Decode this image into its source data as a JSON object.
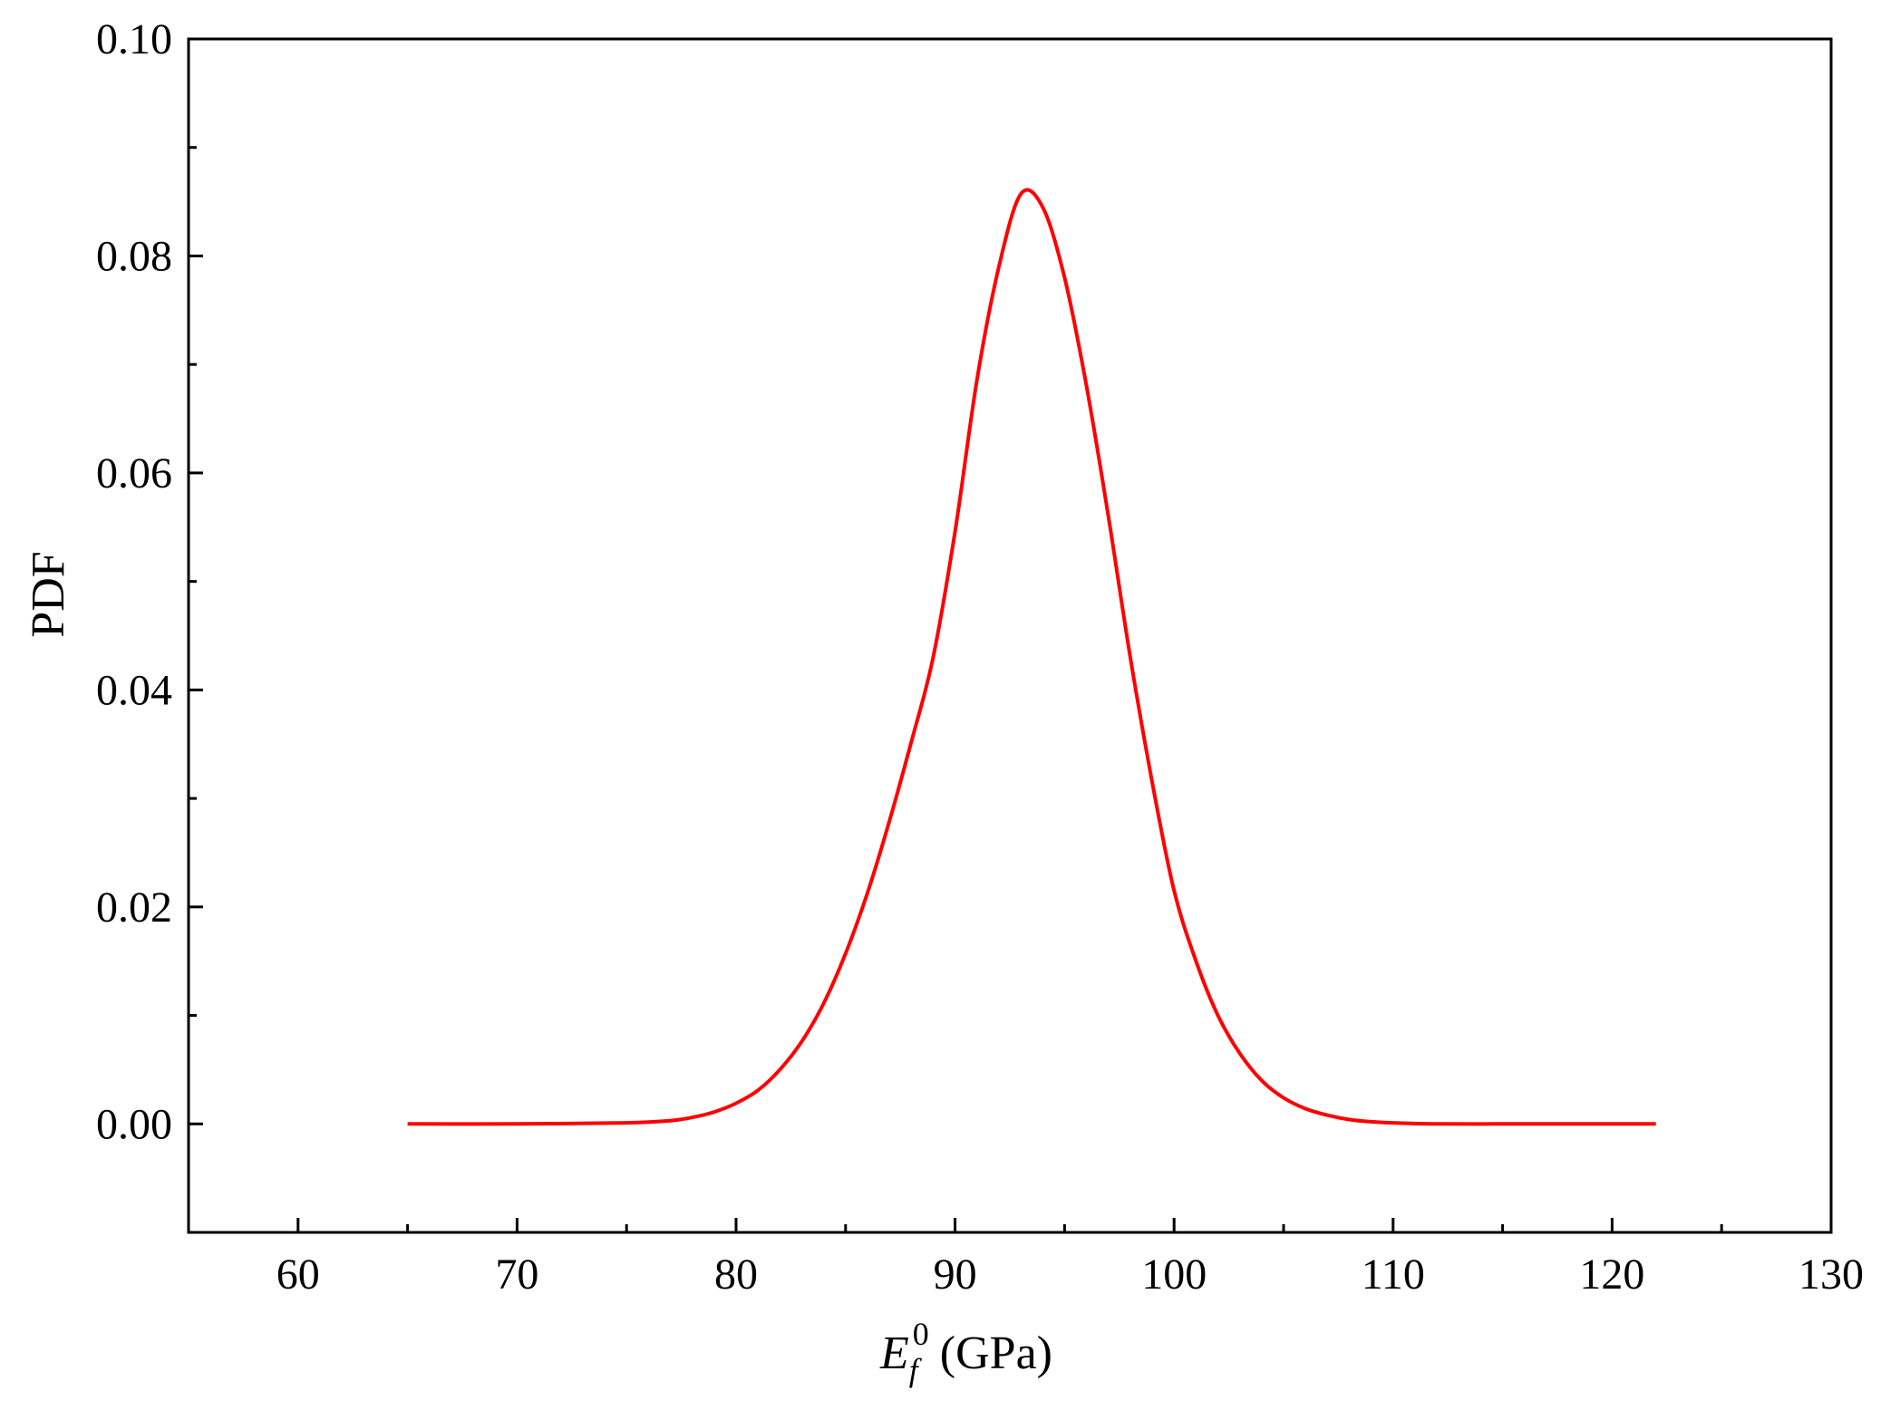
{
  "chart_data": {
    "type": "line",
    "title": "",
    "xlabel": {
      "symbol": "E",
      "subscript": "f",
      "superscript": "0",
      "unit": "(GPa)"
    },
    "ylabel": "PDF",
    "xlim": [
      55,
      130
    ],
    "ylim": [
      -0.01,
      0.1
    ],
    "xticks": [
      60,
      70,
      80,
      90,
      100,
      110,
      120,
      130
    ],
    "xtick_labels": [
      "60",
      "70",
      "80",
      "90",
      "100",
      "110",
      "120",
      "130"
    ],
    "yticks": [
      0.0,
      0.02,
      0.04,
      0.06,
      0.08,
      0.1
    ],
    "ytick_labels": [
      "0.00",
      "0.02",
      "0.04",
      "0.06",
      "0.08",
      "0.10"
    ],
    "grid": false,
    "legend": "none",
    "series": [
      {
        "color": "#ff0000",
        "x": [
          65,
          70,
          75,
          77,
          78,
          79,
          80,
          81,
          82,
          83,
          84,
          85,
          86,
          87,
          88,
          89,
          90,
          91,
          92,
          93,
          94,
          95,
          96,
          97,
          98,
          99,
          100,
          101,
          102,
          103,
          104,
          105,
          106,
          107,
          108,
          109,
          110,
          112,
          115,
          118,
          122
        ],
        "y": [
          0.0,
          0.0,
          0.0001,
          0.0003,
          0.0006,
          0.0011,
          0.0019,
          0.0031,
          0.005,
          0.0076,
          0.0111,
          0.0157,
          0.0213,
          0.0279,
          0.0352,
          0.043,
          0.0546,
          0.0686,
          0.079,
          0.0857,
          0.0845,
          0.078,
          0.068,
          0.056,
          0.043,
          0.0315,
          0.0215,
          0.015,
          0.01,
          0.0065,
          0.004,
          0.0024,
          0.0014,
          0.0008,
          0.0004,
          0.0002,
          0.0001,
          0.0,
          0.0,
          0.0,
          0.0
        ]
      }
    ]
  }
}
